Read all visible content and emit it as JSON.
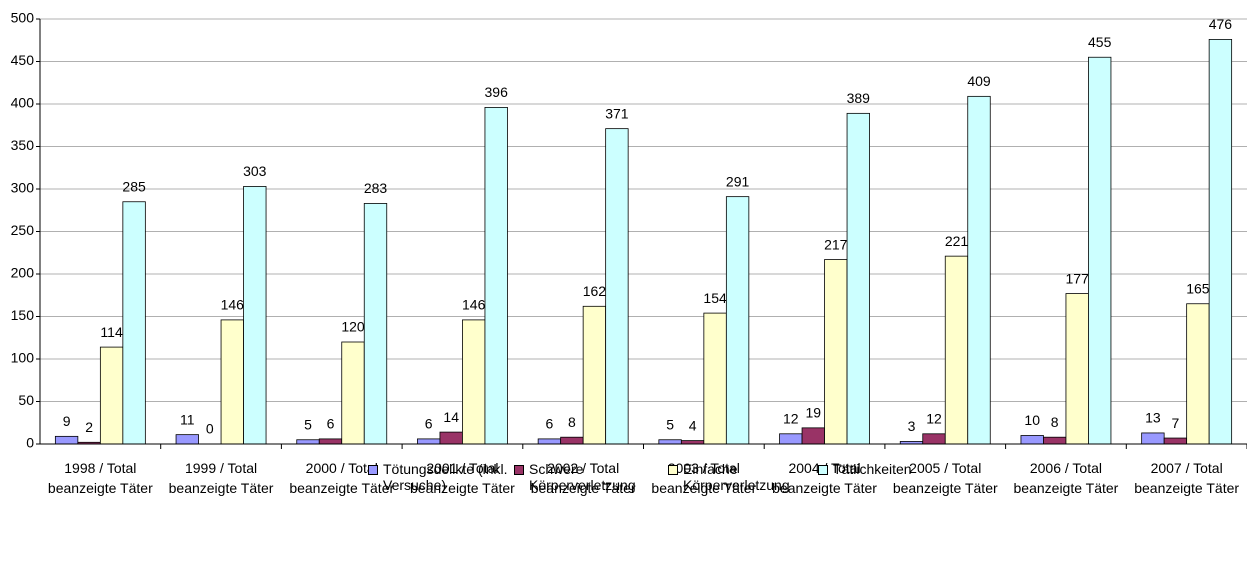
{
  "chart_data": {
    "type": "bar",
    "categories": [
      "1998 / Total beanzeigte Täter",
      "1999 / Total beanzeigte Täter",
      "2000 / Total beanzeigte Täter",
      "2001 / Total beanzeigte Täter",
      "2002 / Total beanzeigte Täter",
      "2003 / Total beanzeigte Täter",
      "2004 / Total beanzeigte Täter",
      "2005 / Total beanzeigte Täter",
      "2006 / Total beanzeigte Täter",
      "2007 / Total beanzeigte Täter"
    ],
    "series": [
      {
        "name": "Tötungsdelikte (inkl. Versuche)",
        "color": "#9999ff",
        "values": [
          9,
          11,
          5,
          6,
          6,
          5,
          12,
          3,
          10,
          13
        ]
      },
      {
        "name": "Schwere Körperverletzung",
        "color": "#993366",
        "values": [
          2,
          0,
          6,
          14,
          8,
          4,
          19,
          12,
          8,
          7
        ]
      },
      {
        "name": "Einfache Körperverletzung",
        "color": "#ffffcc",
        "values": [
          114,
          146,
          120,
          146,
          162,
          154,
          217,
          221,
          177,
          165
        ]
      },
      {
        "name": "Tätlichkeiten",
        "color": "#ccffff",
        "values": [
          285,
          303,
          283,
          396,
          371,
          291,
          389,
          409,
          455,
          476
        ]
      }
    ],
    "ylim": [
      0,
      500
    ],
    "yticks": [
      0,
      50,
      100,
      150,
      200,
      250,
      300,
      350,
      400,
      450,
      500
    ],
    "grid": true,
    "legend": "bottom"
  }
}
